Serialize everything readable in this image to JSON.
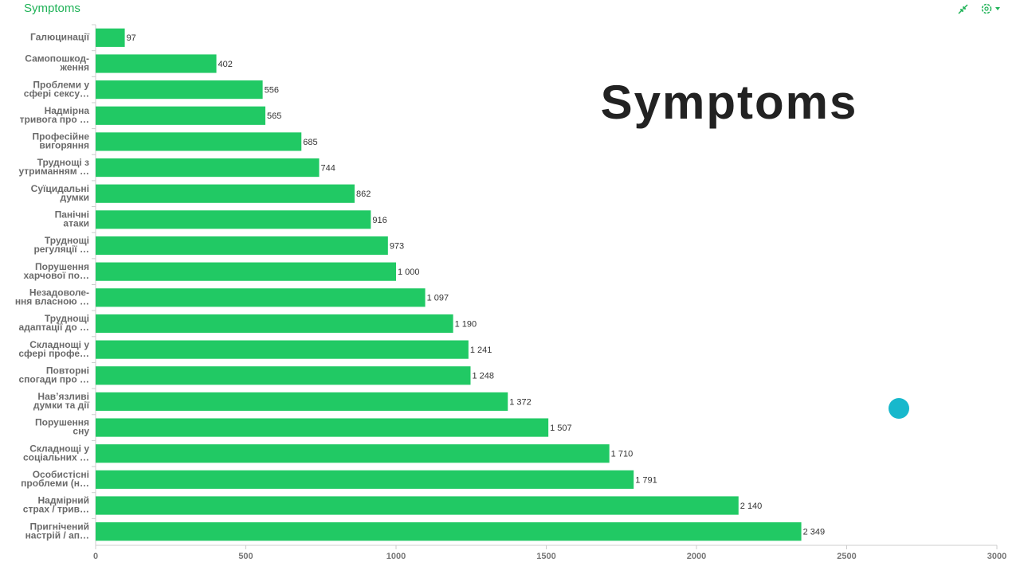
{
  "chart_data": {
    "type": "barh",
    "title": "Symptoms",
    "annotation": "Symptoms",
    "categories": [
      [
        "Галюцинації"
      ],
      [
        "Самопошкод-",
        "ження"
      ],
      [
        "Проблеми у",
        "сфері сексу…"
      ],
      [
        "Надмірна",
        "тривога про …"
      ],
      [
        "Професійне",
        "вигоряння"
      ],
      [
        "Труднощі з",
        "утриманням …"
      ],
      [
        "Суїцидальні",
        "думки"
      ],
      [
        "Панічні",
        "атаки"
      ],
      [
        "Труднощі",
        "регуляції …"
      ],
      [
        "Порушення",
        "харчової по…"
      ],
      [
        "Незадоволе-",
        "ння власною …"
      ],
      [
        "Труднощі",
        "адаптації до …"
      ],
      [
        "Складнощі у",
        "сфері профе…"
      ],
      [
        "Повторні",
        "спогади про …"
      ],
      [
        "Нав’язливі",
        "думки та дії"
      ],
      [
        "Порушення",
        "сну"
      ],
      [
        "Складнощі у",
        "соціальних …"
      ],
      [
        "Особистісні",
        "проблеми (н…"
      ],
      [
        "Надмірний",
        "страх / трив…"
      ],
      [
        "Пригнічений",
        "настрій / ап…"
      ]
    ],
    "values": [
      97,
      402,
      556,
      565,
      685,
      744,
      862,
      916,
      973,
      1000,
      1097,
      1190,
      1241,
      1248,
      1372,
      1507,
      1710,
      1791,
      2140,
      2349
    ],
    "value_labels": [
      "97",
      "402",
      "556",
      "565",
      "685",
      "744",
      "862",
      "916",
      "973",
      "1 000",
      "1 097",
      "1 190",
      "1 241",
      "1 248",
      "1 372",
      "1 507",
      "1 710",
      "1 791",
      "2 140",
      "2 349"
    ],
    "color": "#21c964",
    "xlim": [
      0,
      3000
    ],
    "xticks": [
      0,
      500,
      1000,
      1500,
      2000,
      2500,
      3000
    ],
    "grid": false
  }
}
